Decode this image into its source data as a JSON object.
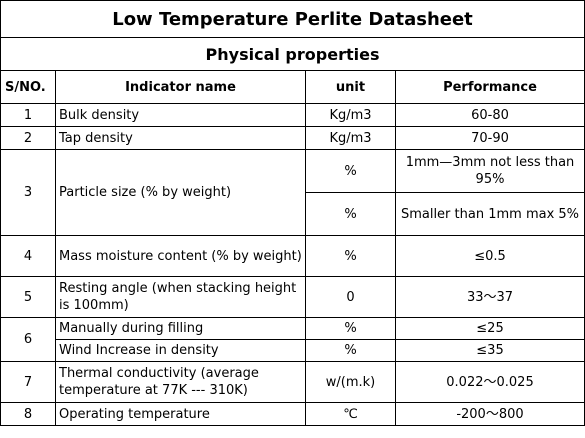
{
  "title": "Low Temperature Perlite Datasheet",
  "section": "Physical properties",
  "headers": {
    "sno": "S/NO.",
    "indicator": "Indicator name",
    "unit": "unit",
    "performance": "Performance"
  },
  "rows": {
    "r1": {
      "no": "1",
      "name": "Bulk density",
      "unit": "Kg/m3",
      "perf": "60-80"
    },
    "r2": {
      "no": "2",
      "name": "Tap density",
      "unit": "Kg/m3",
      "perf": "70-90"
    },
    "r3": {
      "no": "3",
      "name": "Particle size (% by weight)",
      "unit_a": "%",
      "perf_a": "1mm—3mm not less than 95%",
      "unit_b": "%",
      "perf_b": "Smaller than 1mm max 5%"
    },
    "r4": {
      "no": "4",
      "name": "Mass moisture content (% by weight)",
      "unit": "%",
      "perf": "≤0.5"
    },
    "r5": {
      "no": "5",
      "name": "Resting angle (when stacking height is 100mm)",
      "unit": "0",
      "perf": "33～37"
    },
    "r6": {
      "no": "6",
      "name_a": "Manually during filling",
      "unit_a": "%",
      "perf_a": "≤25",
      "name_b": "Wind Increase in density",
      "unit_b": "%",
      "perf_b": "≤35"
    },
    "r7": {
      "no": "7",
      "name": "Thermal conductivity (average temperature at 77K --- 310K)",
      "unit": "w/(m.k)",
      "perf": "0.022～0.025"
    },
    "r8": {
      "no": "8",
      "name": "Operating temperature",
      "unit": "℃",
      "perf": "-200～800"
    }
  }
}
